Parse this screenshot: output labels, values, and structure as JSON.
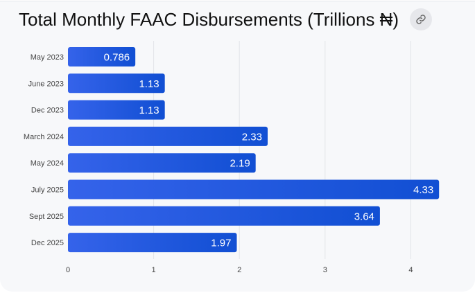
{
  "header": {
    "title": "Total Monthly FAAC Disbursements (Trillions ₦)",
    "link_icon": "link-icon"
  },
  "colors": {
    "bar_start": "#3563ea",
    "bar_end": "#114fd3",
    "grid": "#e2e4e8"
  },
  "chart_data": {
    "type": "bar",
    "orientation": "horizontal",
    "title": "Total Monthly FAAC Disbursements (Trillions ₦)",
    "categories": [
      "May 2023",
      "June 2023",
      "Dec 2023",
      "March 2024",
      "May 2024",
      "July 2025",
      "Sept 2025",
      "Dec 2025"
    ],
    "values": [
      0.786,
      1.13,
      1.13,
      2.33,
      2.19,
      4.33,
      3.64,
      1.97
    ],
    "value_labels": [
      "0.786",
      "1.13",
      "1.13",
      "2.33",
      "2.19",
      "4.33",
      "3.64",
      "1.97"
    ],
    "xticks": [
      "0",
      "1",
      "2",
      "3",
      "4"
    ],
    "xlim": [
      0,
      4.7
    ],
    "xlabel": "",
    "ylabel": "",
    "grid": true
  }
}
